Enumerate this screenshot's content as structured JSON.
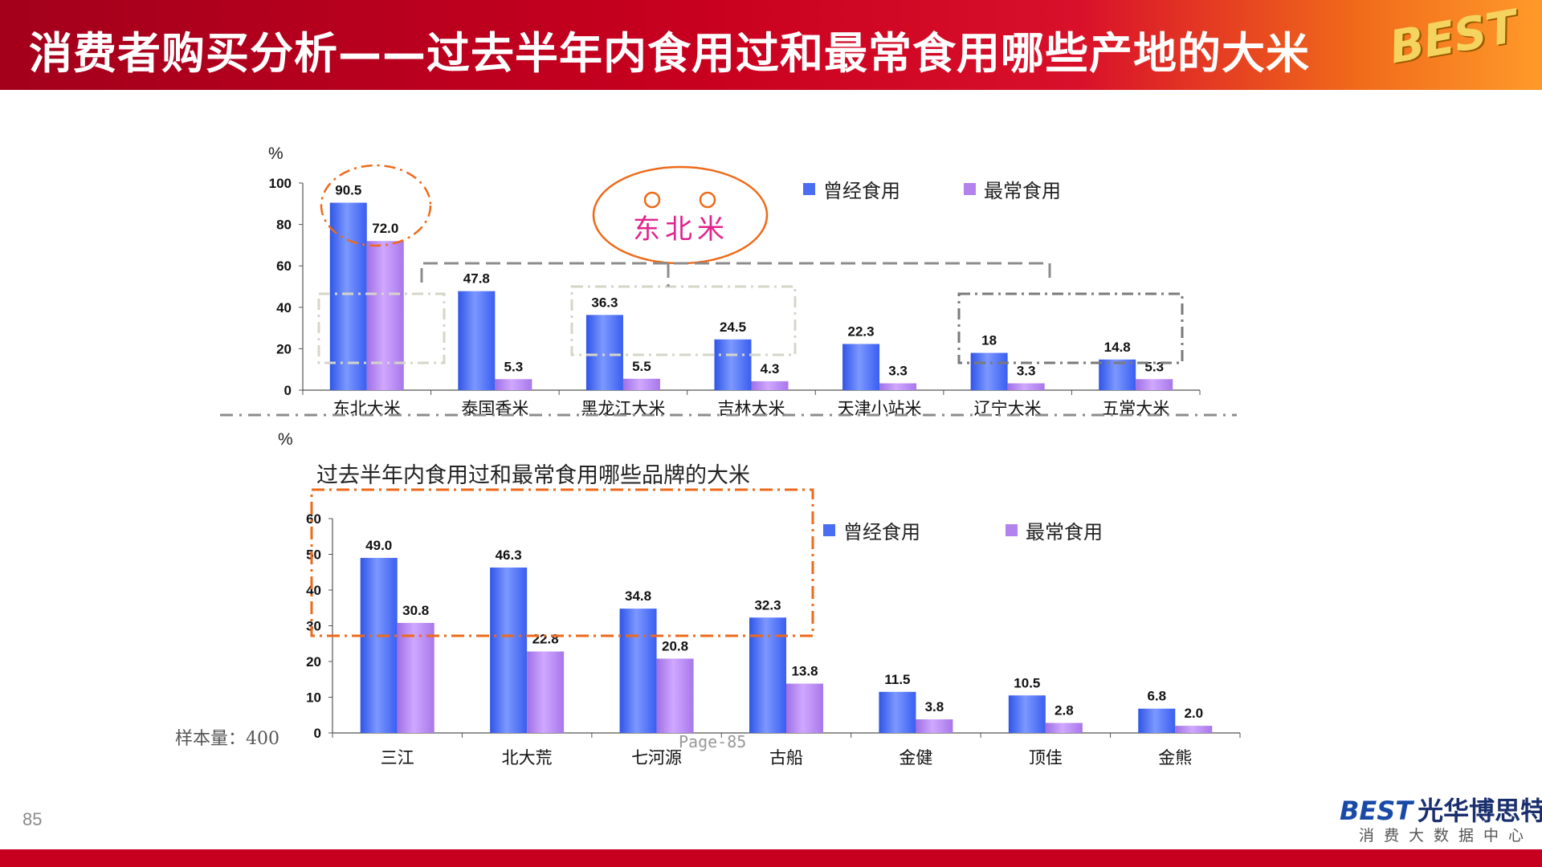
{
  "header": {
    "title": "消费者购买分析——过去半年内食用过和最常食用哪些产地的大米",
    "logo_text": "BEST"
  },
  "footer": {
    "page_number": "85",
    "page_mark": "Page-85",
    "sample_size": "样本量：400",
    "brand_name_en": "BEST",
    "brand_name_cn": "光华博思特",
    "brand_tagline": "消费大数据中心"
  },
  "annotation": {
    "text": "东北米"
  },
  "colors": {
    "series_ever": "#4a6ef2",
    "series_most": "#b482ec",
    "header_red": "#c8001f",
    "highlight_orange": "#ee6a1a",
    "dash_gray": "#8c8c8c"
  },
  "chart_data": [
    {
      "type": "bar",
      "title": "",
      "ylabel": "%",
      "ylim": [
        0,
        100
      ],
      "yticks": [
        0,
        20,
        40,
        60,
        80,
        100
      ],
      "categories": [
        "东北大米",
        "泰国香米",
        "黑龙江大米",
        "吉林大米",
        "天津小站米",
        "辽宁大米",
        "五常大米"
      ],
      "series": [
        {
          "name": "曾经食用",
          "values": [
            90.5,
            47.8,
            36.3,
            24.5,
            22.3,
            18,
            14.8
          ],
          "labels": [
            "90.5",
            "47.8",
            "36.3",
            "24.5",
            "22.3",
            "18",
            "14.8"
          ]
        },
        {
          "name": "最常食用",
          "values": [
            72.0,
            5.3,
            5.5,
            4.3,
            3.3,
            3.3,
            5.3
          ],
          "labels": [
            "72.0",
            "5.3",
            "5.5",
            "4.3",
            "3.3",
            "3.3",
            "5.3"
          ]
        }
      ],
      "legend": "top-right"
    },
    {
      "type": "bar",
      "title": "过去半年内食用过和最常食用哪些品牌的大米",
      "ylabel": "%",
      "ylim": [
        0,
        60
      ],
      "yticks": [
        0,
        10,
        20,
        30,
        40,
        50,
        60
      ],
      "categories": [
        "三江",
        "北大荒",
        "七河源",
        "古船",
        "金健",
        "顶佳",
        "金熊"
      ],
      "series": [
        {
          "name": "曾经食用",
          "values": [
            49.0,
            46.3,
            34.8,
            32.3,
            11.5,
            10.5,
            6.8
          ],
          "labels": [
            "49.0",
            "46.3",
            "34.8",
            "32.3",
            "11.5",
            "10.5",
            "6.8"
          ]
        },
        {
          "name": "最常食用",
          "values": [
            30.8,
            22.8,
            20.8,
            13.8,
            3.8,
            2.8,
            2.0
          ],
          "labels": [
            "30.8",
            "22.8",
            "20.8",
            "13.8",
            "3.8",
            "2.8",
            "2.0"
          ]
        }
      ],
      "legend": "top-right"
    }
  ]
}
